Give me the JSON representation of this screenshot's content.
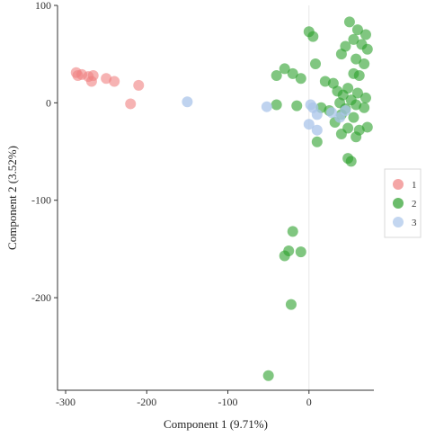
{
  "chart_data": {
    "type": "scatter",
    "xlabel": "Component 1 (9.71%)",
    "ylabel": "Component 2 (3.52%)",
    "xlim": [
      -310,
      80
    ],
    "ylim": [
      -295,
      100
    ],
    "x_ticks": [
      -300,
      -200,
      -100,
      0
    ],
    "y_ticks": [
      100,
      0,
      -100,
      -200
    ],
    "grid": false,
    "legend_position": "right",
    "series": [
      {
        "name": "1",
        "color": "#f08080",
        "points": [
          {
            "x": -287,
            "y": 31
          },
          {
            "x": -285,
            "y": 28
          },
          {
            "x": -280,
            "y": 29
          },
          {
            "x": -272,
            "y": 27
          },
          {
            "x": -268,
            "y": 22
          },
          {
            "x": -266,
            "y": 28
          },
          {
            "x": -250,
            "y": 25
          },
          {
            "x": -240,
            "y": 22
          },
          {
            "x": -220,
            "y": -1
          },
          {
            "x": -210,
            "y": 18
          }
        ]
      },
      {
        "name": "2",
        "color": "#2ca02c",
        "points": [
          {
            "x": 0,
            "y": 73
          },
          {
            "x": 5,
            "y": 68
          },
          {
            "x": 50,
            "y": 83
          },
          {
            "x": 60,
            "y": 75
          },
          {
            "x": 70,
            "y": 70
          },
          {
            "x": 55,
            "y": 65
          },
          {
            "x": 65,
            "y": 60
          },
          {
            "x": 45,
            "y": 58
          },
          {
            "x": 72,
            "y": 55
          },
          {
            "x": 40,
            "y": 50
          },
          {
            "x": 58,
            "y": 45
          },
          {
            "x": 68,
            "y": 40
          },
          {
            "x": 8,
            "y": 40
          },
          {
            "x": -30,
            "y": 35
          },
          {
            "x": -20,
            "y": 30
          },
          {
            "x": -10,
            "y": 25
          },
          {
            "x": -40,
            "y": 28
          },
          {
            "x": 20,
            "y": 22
          },
          {
            "x": 30,
            "y": 20
          },
          {
            "x": 55,
            "y": 30
          },
          {
            "x": 62,
            "y": 28
          },
          {
            "x": 48,
            "y": 15
          },
          {
            "x": 35,
            "y": 12
          },
          {
            "x": 42,
            "y": 8
          },
          {
            "x": 60,
            "y": 10
          },
          {
            "x": 70,
            "y": 5
          },
          {
            "x": 52,
            "y": 3
          },
          {
            "x": 38,
            "y": 0
          },
          {
            "x": 58,
            "y": -2
          },
          {
            "x": 68,
            "y": -5
          },
          {
            "x": 45,
            "y": -6
          },
          {
            "x": 25,
            "y": -8
          },
          {
            "x": 40,
            "y": -12
          },
          {
            "x": 55,
            "y": -15
          },
          {
            "x": 32,
            "y": -20
          },
          {
            "x": 48,
            "y": -26
          },
          {
            "x": 62,
            "y": -28
          },
          {
            "x": 72,
            "y": -25
          },
          {
            "x": 40,
            "y": -32
          },
          {
            "x": 58,
            "y": -35
          },
          {
            "x": 10,
            "y": -40
          },
          {
            "x": 48,
            "y": -57
          },
          {
            "x": 52,
            "y": -60
          },
          {
            "x": 15,
            "y": -5
          },
          {
            "x": -15,
            "y": -3
          },
          {
            "x": -40,
            "y": -2
          },
          {
            "x": -20,
            "y": -132
          },
          {
            "x": -25,
            "y": -152
          },
          {
            "x": -30,
            "y": -157
          },
          {
            "x": -10,
            "y": -153
          },
          {
            "x": -22,
            "y": -207
          },
          {
            "x": -50,
            "y": -280
          }
        ]
      },
      {
        "name": "3",
        "color": "#a9c4ea",
        "points": [
          {
            "x": -150,
            "y": 1
          },
          {
            "x": -52,
            "y": -4
          },
          {
            "x": 2,
            "y": -2
          },
          {
            "x": 5,
            "y": -5
          },
          {
            "x": 10,
            "y": -12
          },
          {
            "x": 28,
            "y": -10
          },
          {
            "x": 38,
            "y": -15
          },
          {
            "x": 45,
            "y": -8
          },
          {
            "x": 0,
            "y": -22
          },
          {
            "x": 10,
            "y": -28
          }
        ]
      }
    ]
  }
}
